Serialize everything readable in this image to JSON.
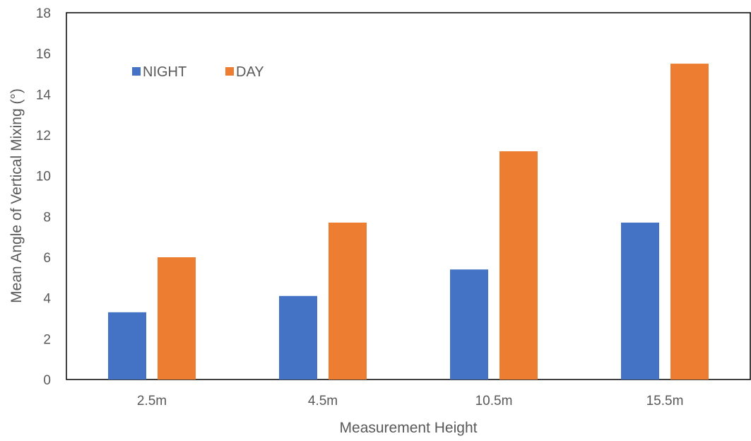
{
  "chart_data": {
    "type": "bar",
    "categories": [
      "2.5m",
      "4.5m",
      "10.5m",
      "15.5m"
    ],
    "series": [
      {
        "name": "NIGHT",
        "color": "#4472C4",
        "values": [
          3.3,
          4.1,
          5.4,
          7.7
        ]
      },
      {
        "name": "DAY",
        "color": "#ED7D31",
        "values": [
          6.0,
          7.7,
          11.2,
          15.5
        ]
      }
    ],
    "xlabel": "Measurement  Height",
    "ylabel": "Mean  Angle  of  Vertical  Mixing  (°)",
    "ylim": [
      0,
      18
    ],
    "yticks": [
      "0",
      "2",
      "4",
      "6",
      "8",
      "10",
      "12",
      "14",
      "16",
      "18"
    ],
    "grid": false,
    "legend": "top-left"
  }
}
